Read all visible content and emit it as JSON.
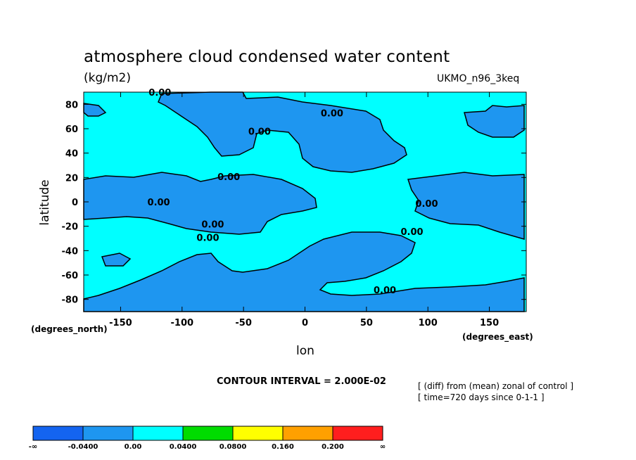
{
  "title": "atmosphere cloud condensed water content",
  "units": "(kg/m2)",
  "model": "UKMO_n96_3keq",
  "ylabel": "latitude",
  "xlabel": "lon",
  "ylabel_unit": "(degrees_north)",
  "xlabel_unit": "(degrees_east)",
  "contour_interval": "CONTOUR INTERVAL = 2.000E-02",
  "note_line1": "[ (diff) from (mean) zonal of control ]",
  "note_line2": "[ time=720 days since 0-1-1 ]",
  "chart_data": {
    "type": "heatmap",
    "xlim": [
      -180,
      180
    ],
    "ylim": [
      -90,
      90
    ],
    "x_ticks": [
      -150,
      -100,
      -50,
      0,
      50,
      100,
      150
    ],
    "y_ticks": [
      80,
      60,
      40,
      20,
      0,
      -20,
      -40,
      -60,
      -80
    ],
    "contour_level": "0.00",
    "contour_labels": [
      {
        "lon": -118,
        "lat": 87,
        "text": "0.00"
      },
      {
        "lon": 22,
        "lat": 70,
        "text": "0.00"
      },
      {
        "lon": -37,
        "lat": 55,
        "text": "0.00"
      },
      {
        "lon": -62,
        "lat": 18,
        "text": "0.00"
      },
      {
        "lon": -119,
        "lat": -3,
        "text": "0.00"
      },
      {
        "lon": -75,
        "lat": -21,
        "text": "0.00"
      },
      {
        "lon": -79,
        "lat": -32,
        "text": "0.00"
      },
      {
        "lon": 99,
        "lat": -4,
        "text": "0.00"
      },
      {
        "lon": 87,
        "lat": -27,
        "text": "0.00"
      },
      {
        "lon": 65,
        "lat": -75,
        "text": "0.00"
      }
    ],
    "colors": {
      "negative_fill": "#1E96F0",
      "neutral_fill": "#00FFFF"
    },
    "colorbar": {
      "colors": [
        "#1464F0",
        "#1E96F0",
        "#00FFFF",
        "#00DC00",
        "#FFFF00",
        "#FFA000",
        "#FF1E1E"
      ],
      "labels": [
        "-∞",
        "-0.0400",
        "0.00",
        "0.0400",
        "0.0800",
        "0.160",
        "0.200",
        "∞"
      ]
    }
  }
}
